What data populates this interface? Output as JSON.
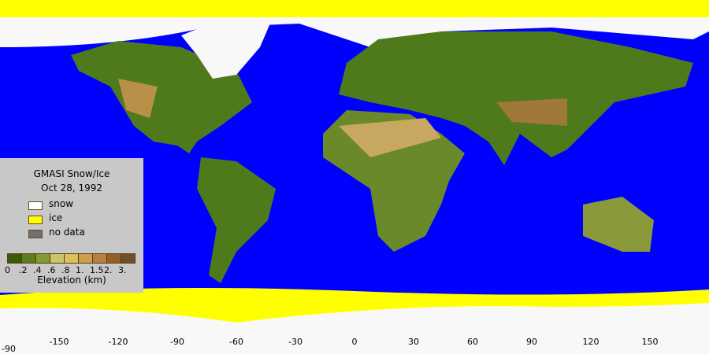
{
  "legend": {
    "title": "GMASI Snow/Ice",
    "date": "Oct 28, 1992",
    "items": [
      {
        "label": "snow",
        "color": "#ffffff"
      },
      {
        "label": "ice",
        "color": "#ffff00"
      },
      {
        "label": "no data",
        "color": "#707070"
      }
    ],
    "elevation_colors": [
      "#3a5a08",
      "#5a7f20",
      "#849a34",
      "#c8c868",
      "#dcc05c",
      "#cca04c",
      "#b88040",
      "#946028",
      "#70502c"
    ],
    "elevation_ticks": [
      "0",
      ".2",
      ".4",
      ".6",
      ".8",
      "1.",
      "1.5",
      "2.",
      "3."
    ],
    "elevation_label": "Elevation (km)"
  },
  "axis": {
    "lon_labels": [
      "-150",
      "-120",
      "-90",
      "-60",
      "-30",
      "0",
      "30",
      "60",
      "90",
      "120",
      "150"
    ],
    "lat_label": "-90"
  },
  "colors": {
    "ocean": "#0000ff",
    "snow": "#f8f8f8",
    "ice": "#ffff00",
    "land": "#4f7a1c"
  }
}
